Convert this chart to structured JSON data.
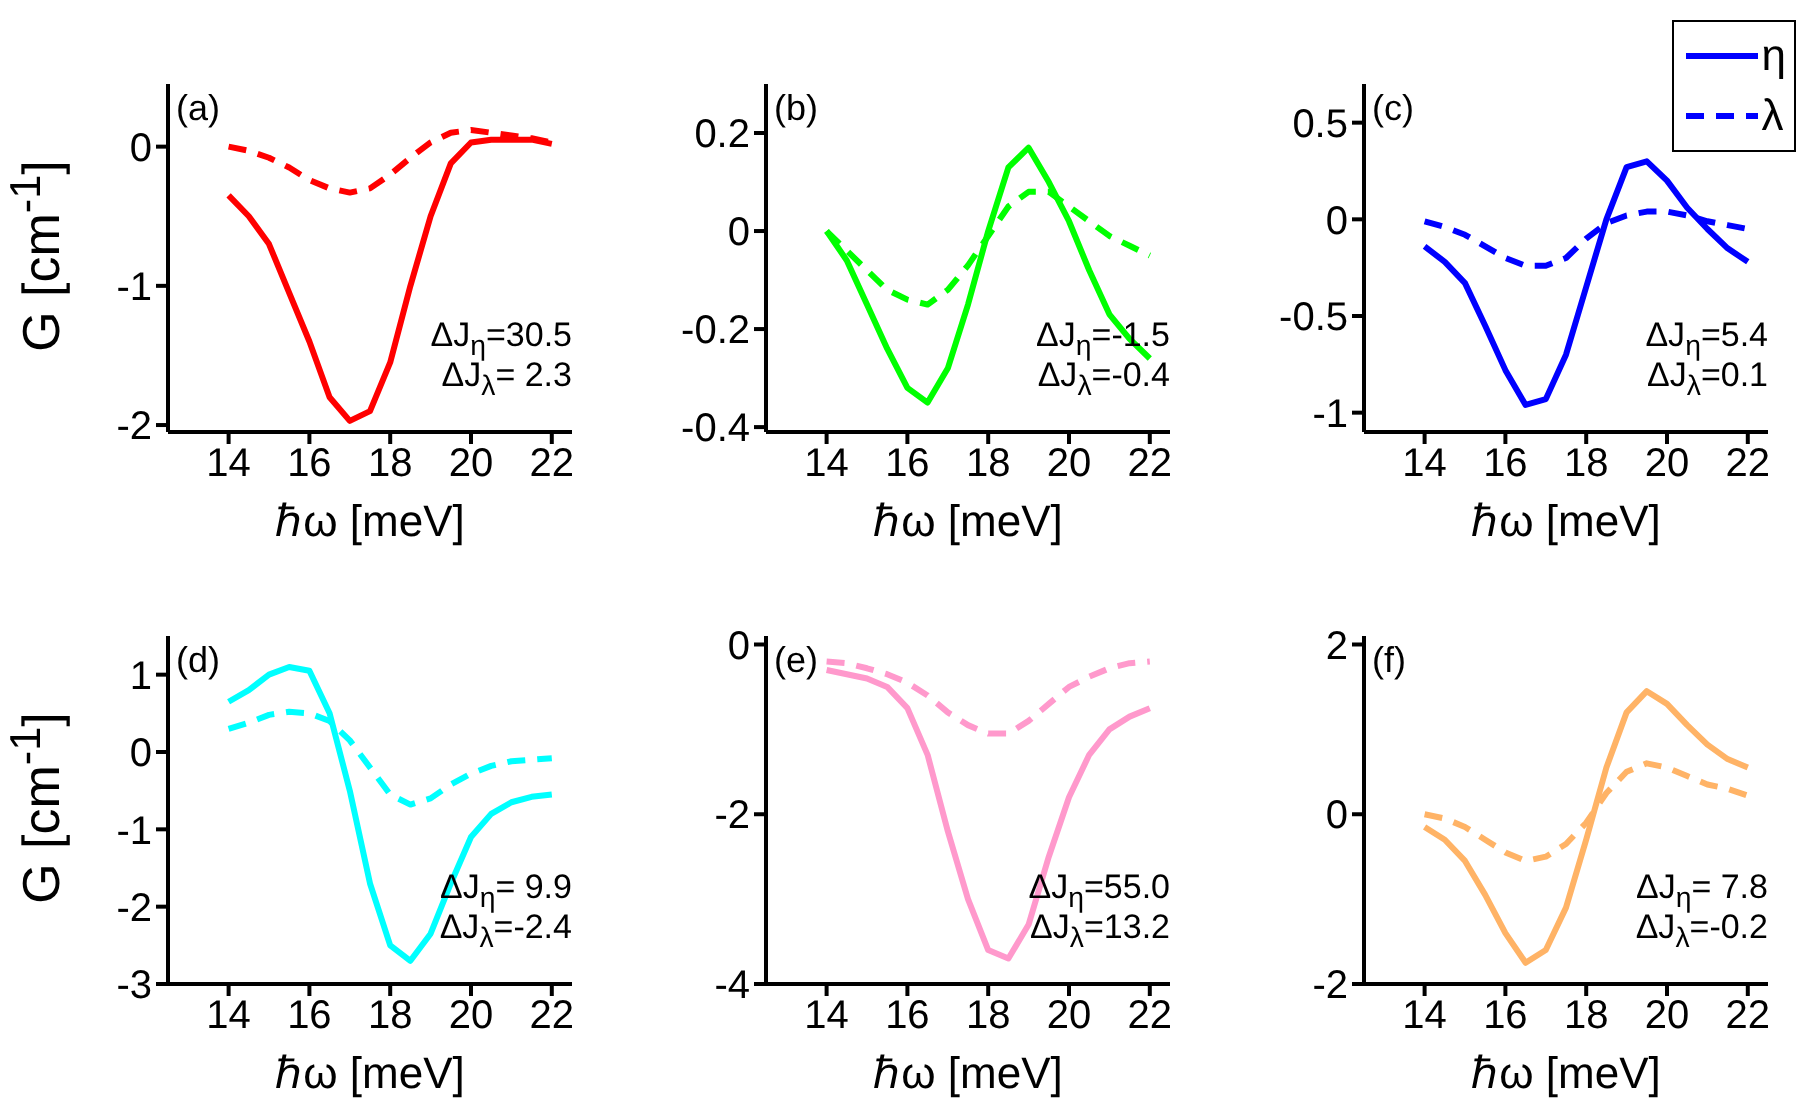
{
  "chart_data": [
    {
      "type": "line",
      "annotations": [
        "(a)",
        "ΔJ$_{η}$=30.5",
        "ΔJ$_{λ}$= 2.3"
      ],
      "ylabel": "G [cm$^{-1}$]",
      "xlabel": "ℏω [meV]",
      "x": [
        14,
        14.5,
        15,
        15.5,
        16,
        16.5,
        17,
        17.5,
        18,
        18.5,
        19,
        19.5,
        20,
        20.5,
        21,
        21.5,
        22
      ],
      "xlim": [
        12.5,
        22.5
      ],
      "xticks": [
        14,
        16,
        18,
        20,
        22
      ],
      "ylim": [
        -2.05,
        0.45
      ],
      "yticks": [
        -2,
        -1,
        0
      ],
      "series": [
        {
          "color": "#ff0000",
          "line_style": "solid",
          "values": [
            -0.35,
            -0.5,
            -0.7,
            -1.05,
            -1.4,
            -1.8,
            -1.97,
            -1.9,
            -1.55,
            -1.0,
            -0.5,
            -0.12,
            0.03,
            0.05,
            0.05,
            0.05,
            0.02
          ]
        },
        {
          "color": "#ff0000",
          "line_style": "dashed",
          "values": [
            0,
            -0.03,
            -0.08,
            -0.15,
            -0.24,
            -0.3,
            -0.33,
            -0.3,
            -0.2,
            -0.08,
            0.03,
            0.1,
            0.12,
            0.1,
            0.08,
            0.06,
            0.03
          ]
        }
      ]
    },
    {
      "type": "line",
      "annotations": [
        "(b)",
        "ΔJ$_{η}$=-1.5",
        "ΔJ$_{λ}$=-0.4"
      ],
      "xlabel": "ℏω [meV]",
      "x": [
        14,
        14.5,
        15,
        15.5,
        16,
        16.5,
        17,
        17.5,
        18,
        18.5,
        19,
        19.5,
        20,
        20.5,
        21,
        21.5,
        22
      ],
      "xlim": [
        12.5,
        22.5
      ],
      "xticks": [
        14,
        16,
        18,
        20,
        22
      ],
      "ylim": [
        -0.41,
        0.3
      ],
      "yticks": [
        -0.4,
        -0.2,
        0,
        0.2
      ],
      "series": [
        {
          "color": "#00ff00",
          "line_style": "solid",
          "values": [
            0,
            -0.06,
            -0.15,
            -0.24,
            -0.32,
            -0.35,
            -0.28,
            -0.15,
            0,
            0.13,
            0.17,
            0.1,
            0.02,
            -0.08,
            -0.17,
            -0.22,
            -0.26
          ]
        },
        {
          "color": "#00ff00",
          "line_style": "dashed",
          "values": [
            0,
            -0.04,
            -0.08,
            -0.12,
            -0.14,
            -0.15,
            -0.12,
            -0.07,
            -0.01,
            0.05,
            0.08,
            0.08,
            0.05,
            0.02,
            -0.01,
            -0.03,
            -0.05
          ]
        }
      ]
    },
    {
      "type": "line",
      "annotations": [
        "(c)",
        "ΔJ$_{η}$=5.4",
        "ΔJ$_{λ}$=0.1"
      ],
      "xlabel": "ℏω [meV]",
      "legend": "top right",
      "x": [
        14,
        14.5,
        15,
        15.5,
        16,
        16.5,
        17,
        17.5,
        18,
        18.5,
        19,
        19.5,
        20,
        20.5,
        21,
        21.5,
        22
      ],
      "xlim": [
        12.5,
        22.5
      ],
      "xticks": [
        14,
        16,
        18,
        20,
        22
      ],
      "ylim": [
        -1.1,
        0.7
      ],
      "yticks": [
        -1,
        -0.5,
        0,
        0.5
      ],
      "series": [
        {
          "name": "η",
          "color": "#0000ff",
          "line_style": "solid",
          "values": [
            -0.14,
            -0.22,
            -0.33,
            -0.55,
            -0.78,
            -0.96,
            -0.93,
            -0.7,
            -0.35,
            0,
            0.27,
            0.3,
            0.2,
            0.06,
            -0.05,
            -0.15,
            -0.22
          ]
        },
        {
          "name": "λ",
          "color": "#0000ff",
          "line_style": "dashed",
          "values": [
            -0.01,
            -0.04,
            -0.08,
            -0.14,
            -0.2,
            -0.24,
            -0.24,
            -0.2,
            -0.1,
            -0.02,
            0.02,
            0.04,
            0.04,
            0.02,
            -0.01,
            -0.03,
            -0.05
          ]
        }
      ]
    },
    {
      "type": "line",
      "annotations": [
        "(d)",
        "ΔJ$_{η}$= 9.9",
        "ΔJ$_{λ}$=-2.4"
      ],
      "ylabel": "G [cm$^{-1}$]",
      "xlabel": "ℏω [meV]",
      "x": [
        14,
        14.5,
        15,
        15.5,
        16,
        16.5,
        17,
        17.5,
        18,
        18.5,
        19,
        19.5,
        20,
        20.5,
        21,
        21.5,
        22
      ],
      "xlim": [
        12.5,
        22.5
      ],
      "xticks": [
        14,
        16,
        18,
        20,
        22
      ],
      "ylim": [
        -3,
        1.5
      ],
      "yticks": [
        -3,
        -2,
        -1,
        0,
        1
      ],
      "series": [
        {
          "color": "#00ffff",
          "line_style": "solid",
          "values": [
            0.65,
            0.8,
            1.0,
            1.1,
            1.05,
            0.5,
            -0.5,
            -1.7,
            -2.5,
            -2.7,
            -2.35,
            -1.7,
            -1.1,
            -0.8,
            -0.65,
            -0.58,
            -0.55
          ]
        },
        {
          "color": "#00ffff",
          "line_style": "dashed",
          "values": [
            0.3,
            0.38,
            0.48,
            0.52,
            0.5,
            0.4,
            0.15,
            -0.2,
            -0.55,
            -0.68,
            -0.6,
            -0.42,
            -0.28,
            -0.18,
            -0.12,
            -0.1,
            -0.08
          ]
        }
      ]
    },
    {
      "type": "line",
      "annotations": [
        "(e)",
        "ΔJ$_{η}$=55.0",
        "ΔJ$_{λ}$=13.2"
      ],
      "xlabel": "ℏω [meV]",
      "x": [
        14,
        14.5,
        15,
        15.5,
        16,
        16.5,
        17,
        17.5,
        18,
        18.5,
        19,
        19.5,
        20,
        20.5,
        21,
        21.5,
        22
      ],
      "xlim": [
        12.5,
        22.5
      ],
      "xticks": [
        14,
        16,
        18,
        20,
        22
      ],
      "ylim": [
        -4,
        0.1
      ],
      "yticks": [
        -4,
        -2,
        0
      ],
      "series": [
        {
          "color": "#ff99cc",
          "line_style": "solid",
          "values": [
            -0.3,
            -0.35,
            -0.4,
            -0.5,
            -0.75,
            -1.3,
            -2.2,
            -3.0,
            -3.6,
            -3.7,
            -3.3,
            -2.5,
            -1.8,
            -1.3,
            -1.0,
            -0.85,
            -0.75
          ]
        },
        {
          "color": "#ff99cc",
          "line_style": "dashed",
          "values": [
            -0.2,
            -0.22,
            -0.28,
            -0.35,
            -0.45,
            -0.6,
            -0.8,
            -0.95,
            -1.05,
            -1.05,
            -0.9,
            -0.7,
            -0.5,
            -0.38,
            -0.28,
            -0.22,
            -0.2
          ]
        }
      ]
    },
    {
      "type": "line",
      "annotations": [
        "(f)",
        "ΔJ$_{η}$= 7.8",
        "ΔJ$_{λ}$=-0.2"
      ],
      "xlabel": "ℏω [meV]",
      "x": [
        14,
        14.5,
        15,
        15.5,
        16,
        16.5,
        17,
        17.5,
        18,
        18.5,
        19,
        19.5,
        20,
        20.5,
        21,
        21.5,
        22
      ],
      "xlim": [
        12.5,
        22.5
      ],
      "xticks": [
        14,
        16,
        18,
        20,
        22
      ],
      "ylim": [
        -2,
        2.1
      ],
      "yticks": [
        -2,
        0,
        2
      ],
      "series": [
        {
          "color": "#ffb366",
          "line_style": "solid",
          "values": [
            -0.15,
            -0.3,
            -0.55,
            -0.95,
            -1.4,
            -1.75,
            -1.6,
            -1.1,
            -0.3,
            0.55,
            1.2,
            1.45,
            1.3,
            1.05,
            0.82,
            0.65,
            0.55
          ]
        },
        {
          "color": "#ffb366",
          "line_style": "dashed",
          "values": [
            0,
            -0.05,
            -0.15,
            -0.3,
            -0.45,
            -0.55,
            -0.5,
            -0.35,
            -0.1,
            0.25,
            0.5,
            0.6,
            0.55,
            0.45,
            0.35,
            0.3,
            0.22
          ]
        }
      ]
    }
  ]
}
